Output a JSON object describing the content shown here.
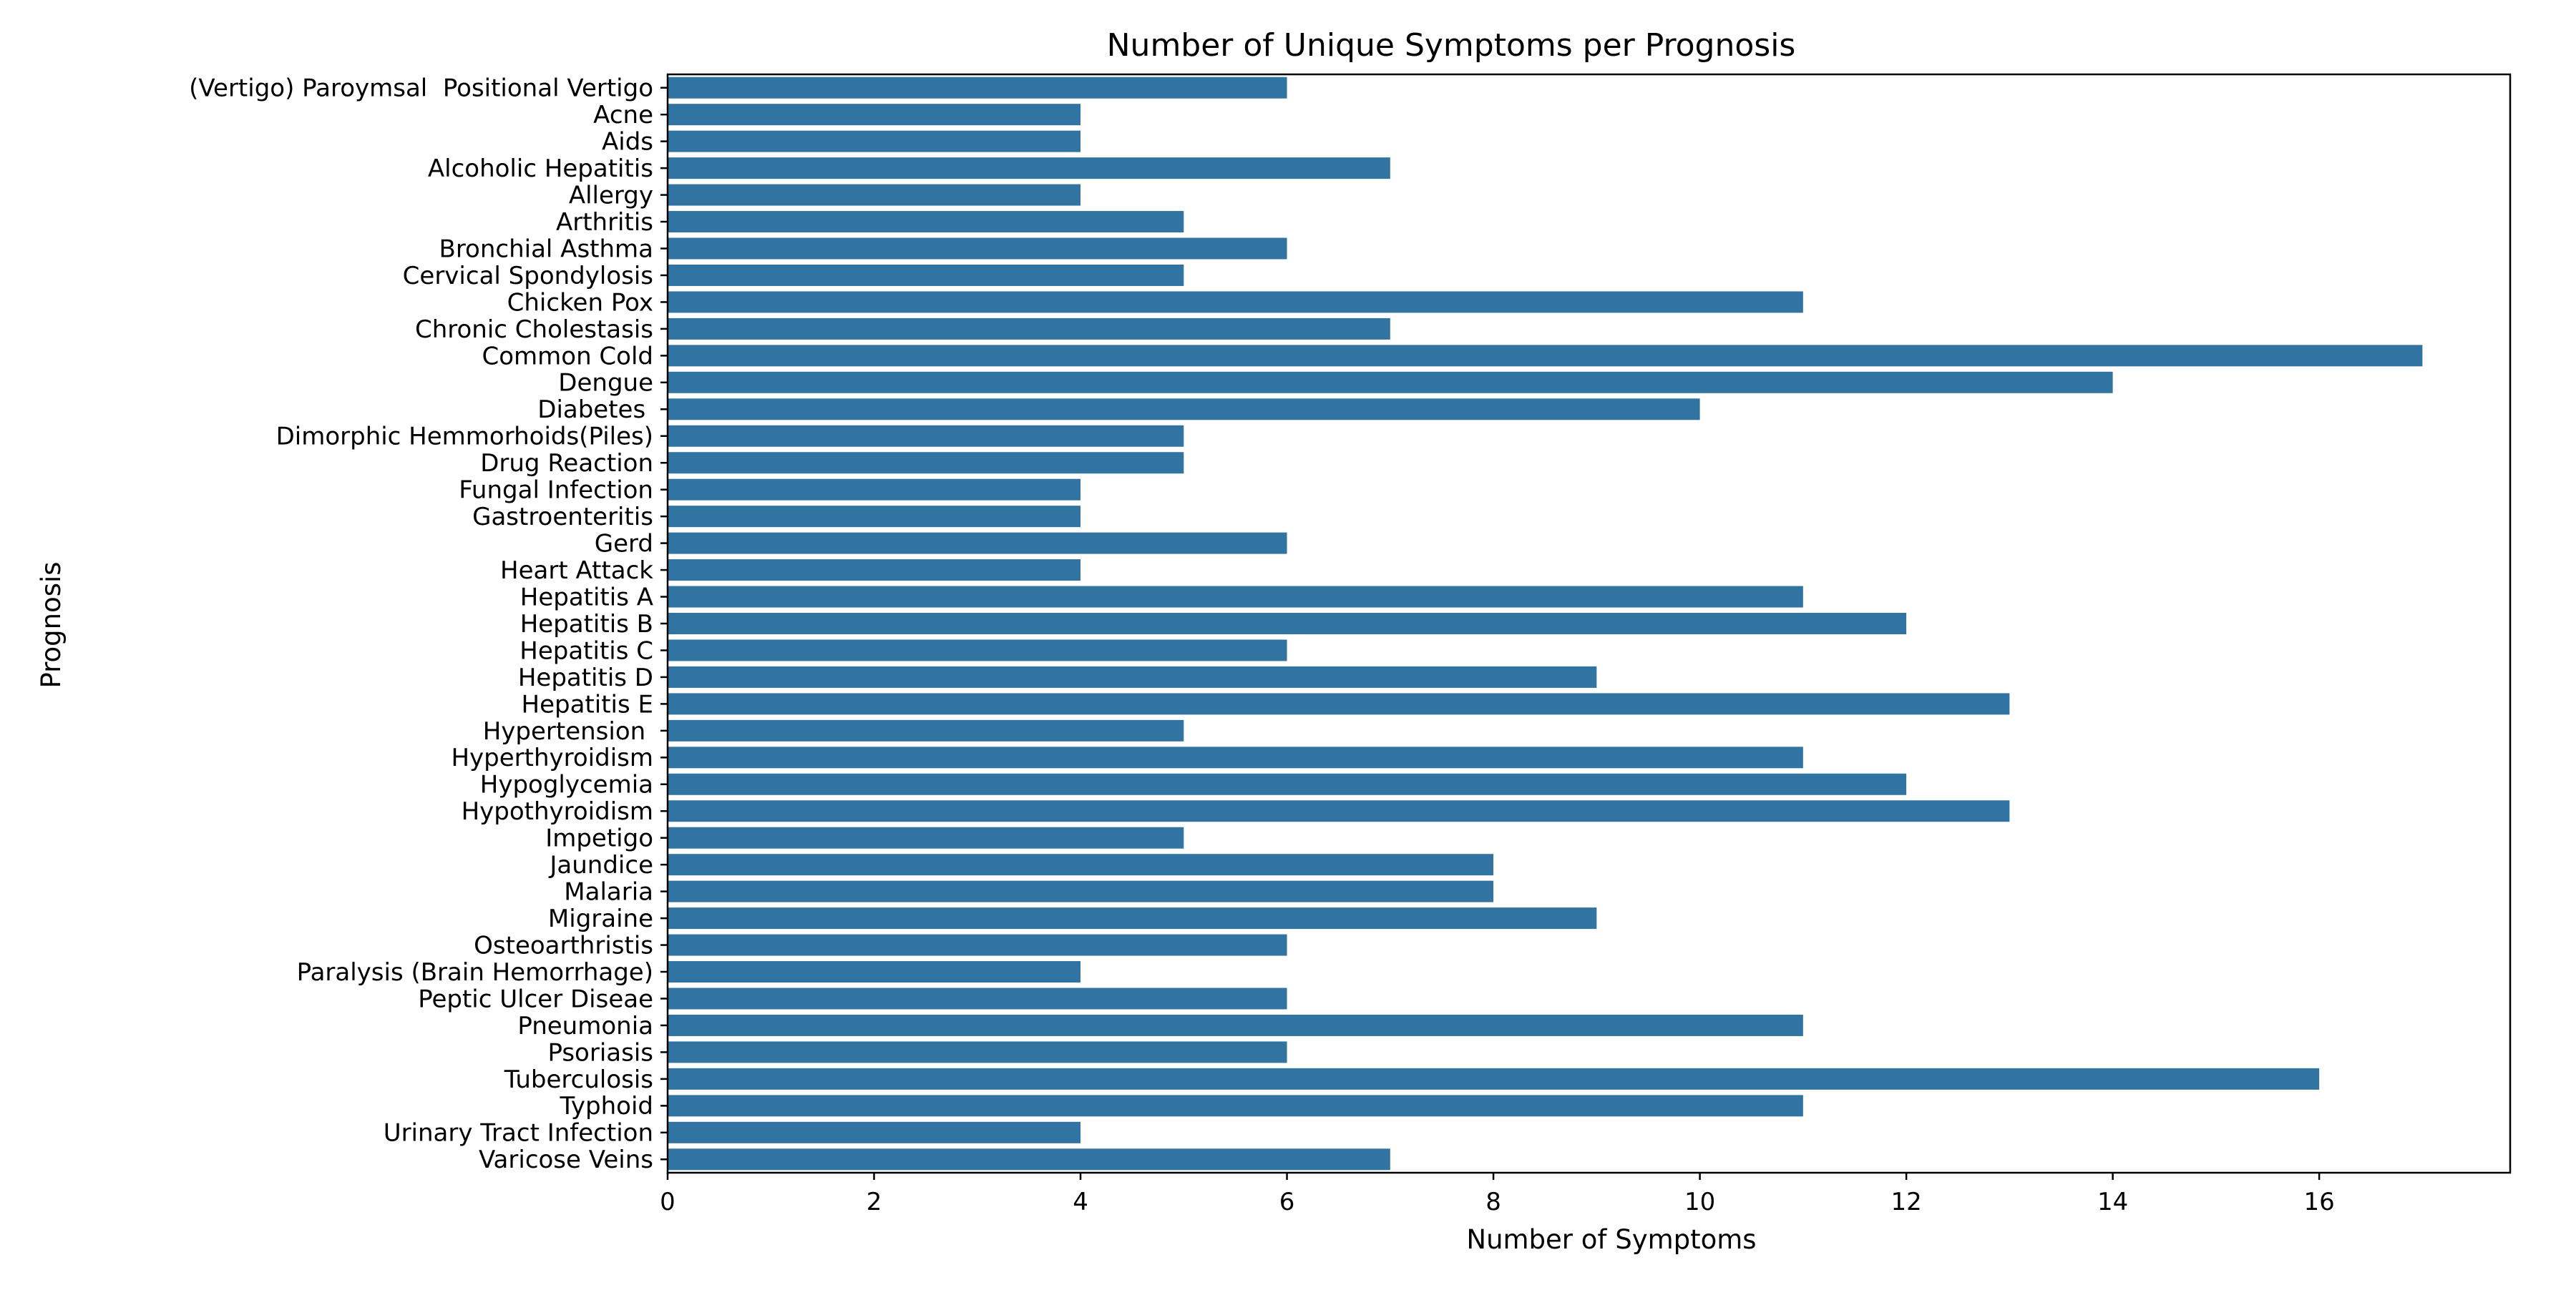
{
  "chart_data": {
    "type": "bar",
    "orientation": "horizontal",
    "title": "Number of Unique Symptoms per Prognosis",
    "xlabel": "Number of Symptoms",
    "ylabel": "Prognosis",
    "xlim": [
      0,
      17.85
    ],
    "xticks": [
      0,
      2,
      4,
      6,
      8,
      10,
      12,
      14,
      16
    ],
    "grid": false,
    "legend": "none",
    "bar_color": "#3274a1",
    "categories": [
      "(Vertigo) Paroymsal  Positional Vertigo",
      "Acne",
      "Aids",
      "Alcoholic Hepatitis",
      "Allergy",
      "Arthritis",
      "Bronchial Asthma",
      "Cervical Spondylosis",
      "Chicken Pox",
      "Chronic Cholestasis",
      "Common Cold",
      "Dengue",
      "Diabetes ",
      "Dimorphic Hemmorhoids(Piles)",
      "Drug Reaction",
      "Fungal Infection",
      "Gastroenteritis",
      "Gerd",
      "Heart Attack",
      "Hepatitis A",
      "Hepatitis B",
      "Hepatitis C",
      "Hepatitis D",
      "Hepatitis E",
      "Hypertension ",
      "Hyperthyroidism",
      "Hypoglycemia",
      "Hypothyroidism",
      "Impetigo",
      "Jaundice",
      "Malaria",
      "Migraine",
      "Osteoarthristis",
      "Paralysis (Brain Hemorrhage)",
      "Peptic Ulcer Diseae",
      "Pneumonia",
      "Psoriasis",
      "Tuberculosis",
      "Typhoid",
      "Urinary Tract Infection",
      "Varicose Veins"
    ],
    "values": [
      6,
      4,
      4,
      7,
      4,
      5,
      6,
      5,
      11,
      7,
      17,
      14,
      10,
      5,
      5,
      4,
      4,
      6,
      4,
      11,
      12,
      6,
      9,
      13,
      5,
      11,
      12,
      13,
      5,
      8,
      8,
      9,
      6,
      4,
      6,
      11,
      6,
      16,
      11,
      4,
      7
    ]
  }
}
